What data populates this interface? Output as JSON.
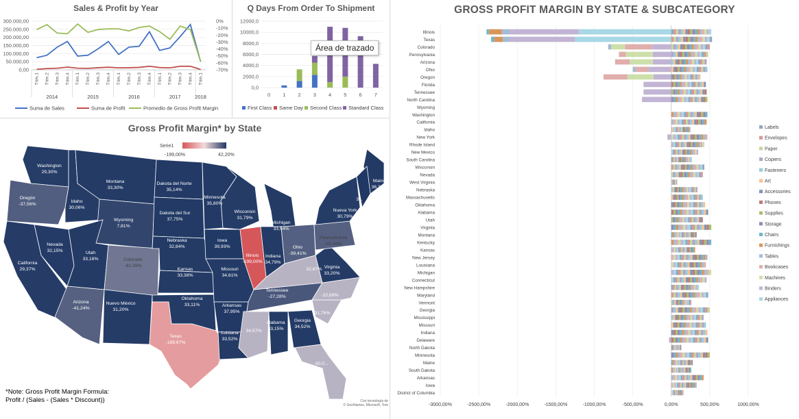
{
  "charts": {
    "sales_profit": {
      "title": "Sales & Profit by Year",
      "left_ticks": [
        "300.000,00",
        "250.000,00",
        "200.000,00",
        "150.000,00",
        "100.000,00",
        "50.000,00",
        "0,00"
      ],
      "right_ticks": [
        "0%",
        "-10%",
        "-20%",
        "-30%",
        "-40%",
        "-50%",
        "-60%",
        "-70%"
      ],
      "quarter_labels": [
        "Trim.1",
        "Trim.2",
        "Trim.3",
        "Trim.4",
        "Trim.1",
        "Trim.2",
        "Trim.3",
        "Trim.4",
        "Trim.1",
        "Trim.2",
        "Trim.3",
        "Trim.4",
        "Trim.1",
        "Trim.2",
        "Trim.3",
        "Trim.4",
        "Trim.1"
      ],
      "year_labels": [
        "2014",
        "2015",
        "2016",
        "2017",
        "2018"
      ],
      "legend": [
        "Suma de Sales",
        "Suma de Profit",
        "Promedio de Gross Profit Margin"
      ],
      "colors": [
        "#4472c4",
        "#c0504d",
        "#9bbb59"
      ]
    },
    "ship_days": {
      "title": "Q Days From Order To Shipment",
      "y_ticks": [
        "12000,0",
        "10000,0",
        "8000,0",
        "6000,0",
        "4000,0",
        "2000,0",
        "0,0"
      ],
      "x_ticks": [
        "0",
        "1",
        "2",
        "3",
        "4",
        "5",
        "6",
        "7"
      ],
      "legend": [
        "First Class",
        "Same Day",
        "Second Class",
        "Standard Class"
      ],
      "colors": [
        "#4472c4",
        "#c0504d",
        "#9bbb59",
        "#8064a2"
      ],
      "tooltip": "Área de trazado"
    },
    "state_map": {
      "title": "Gross Profit Margin* by State",
      "legend_title": "Serie1",
      "legend_min": "-199,00%",
      "legend_max": "42,20%",
      "labels": [
        {
          "name": "Washington",
          "value": "29,30%"
        },
        {
          "name": "Oregón",
          "value": "-37,56%"
        },
        {
          "name": "California",
          "value": "29,37%"
        },
        {
          "name": "Nevada",
          "value": "32,15%"
        },
        {
          "name": "Idaho",
          "value": "30,06%"
        },
        {
          "name": "Montana",
          "value": "33,30%"
        },
        {
          "name": "Wyoming",
          "value": "7,81%"
        },
        {
          "name": "Utah",
          "value": "33,16%"
        },
        {
          "name": "Colorado",
          "value": "-61,39%"
        },
        {
          "name": "Arizona",
          "value": "-41,24%"
        },
        {
          "name": "Nuevo México",
          "value": "31,20%"
        },
        {
          "name": "Dakota del Norte",
          "value": "35,14%"
        },
        {
          "name": "Dakota del Sur",
          "value": "37,75%"
        },
        {
          "name": "Nebraska",
          "value": "32,84%"
        },
        {
          "name": "Kansas",
          "value": "33,38%"
        },
        {
          "name": "Oklahoma",
          "value": "33,11%"
        },
        {
          "name": "Texas",
          "value": "-189,67%"
        },
        {
          "name": "Minnesota",
          "value": "35,80%"
        },
        {
          "name": "Iowa",
          "value": "39,93%"
        },
        {
          "name": "Missouri",
          "value": "34,61%"
        },
        {
          "name": "Arkansas",
          "value": "37,95%"
        },
        {
          "name": "Luisiana",
          "value": "33,52%"
        },
        {
          "name": "Wisconsin",
          "value": "31,79%"
        },
        {
          "name": "Illinois",
          "value": "-199,00%"
        },
        {
          "name": "Michigan",
          "value": "33,54%"
        },
        {
          "name": "Indiana",
          "value": "34,79%"
        },
        {
          "name": "Ohio",
          "value": "-39,41%"
        },
        {
          "name": "Tennessee",
          "value": "-27,28%"
        },
        {
          "name": "",
          "value": "34,57%"
        },
        {
          "name": "Alabama",
          "value": "33,15%"
        },
        {
          "name": "Georgia",
          "value": "34,52%"
        },
        {
          "name": "",
          "value": "31,76%"
        },
        {
          "name": "",
          "value": "-22,69%"
        },
        {
          "name": "",
          "value": "32,67%"
        },
        {
          "name": "Virginia",
          "value": "33,20%"
        },
        {
          "name": "Pennsylvania",
          "value": "-41,46%"
        },
        {
          "name": "Nueva York",
          "value": "30,79%"
        },
        {
          "name": "Maine",
          "value": "36,38%"
        },
        {
          "name": "3...",
          "value": ""
        },
        {
          "name": "",
          "value": "-30,0..."
        }
      ],
      "note_line1": "*Note: Gross Profit Margin Formula:",
      "note_line2": "Profit / (Sales - (Sales * Discount))",
      "credit_line1": "Con tecnología de",
      "credit_line2": "© GeoNames, Microsoft, Tom"
    },
    "subcategory": {
      "title": "GROSS PROFIT MARGIN BY STATE & SUBCATEGORY",
      "states": [
        "Illinois",
        "Texas",
        "Colorado",
        "Pennsylvania",
        "Arizona",
        "Ohio",
        "Oregon",
        "Florida",
        "Tennessee",
        "North Carolina",
        "Wyoming",
        "Washington",
        "California",
        "Idaho",
        "New York",
        "Rhode Island",
        "New Mexico",
        "South Carolina",
        "Wisconsin",
        "Nevada",
        "West Virginia",
        "Nebraska",
        "Massachusetts",
        "Oklahoma",
        "Alabama",
        "Utah",
        "Virginia",
        "Montana",
        "Kentucky",
        "Kansas",
        "New Jersey",
        "Louisiana",
        "Michigan",
        "Connecticut",
        "New Hampshire",
        "Maryland",
        "Vermont",
        "Georgia",
        "Mississippi",
        "Missouri",
        "Indiana",
        "Delaware",
        "North Dakota",
        "Minnesota",
        "Maine",
        "South Dakota",
        "Arkansas",
        "Iowa",
        "District of Columbia"
      ],
      "x_ticks": [
        "-3000,00%",
        "-2500,00%",
        "-2000,00%",
        "-1500,00%",
        "-1000,00%",
        "-500,00%",
        "0,00%",
        "500,00%",
        "1000,00%"
      ],
      "legend": [
        "Labels",
        "Envelopes",
        "Paper",
        "Copiers",
        "Fasteners",
        "Art",
        "Accessories",
        "Phones",
        "Supplies",
        "Storage",
        "Chairs",
        "Furnishings",
        "Tables",
        "Bookcases",
        "Machines",
        "Binders",
        "Appliances"
      ],
      "colors": [
        "#8ea9c1",
        "#d99694",
        "#c3d69b",
        "#b3a2c7",
        "#93cddd",
        "#fac090",
        "#7f96b5",
        "#b97c7a",
        "#a9bf72",
        "#9b86b5",
        "#6fb6c9",
        "#d9965b",
        "#a6bbd4",
        "#e0aeac",
        "#cddfaa",
        "#c2b4d4",
        "#a8d8e5"
      ],
      "negatives": [
        {
          "state": "Illinois",
          "segments": [
            {
              "c": 16,
              "v": -1200
            },
            {
              "c": 15,
              "v": -900
            },
            {
              "c": 12,
              "v": -100
            },
            {
              "c": 11,
              "v": -170
            },
            {
              "c": 10,
              "v": -30
            }
          ]
        },
        {
          "state": "Texas",
          "segments": [
            {
              "c": 16,
              "v": -1250
            },
            {
              "c": 15,
              "v": -850
            },
            {
              "c": 12,
              "v": -90
            },
            {
              "c": 11,
              "v": -110
            },
            {
              "c": 10,
              "v": -40
            }
          ]
        },
        {
          "state": "Colorado",
          "segments": [
            {
              "c": 15,
              "v": -250
            },
            {
              "c": 13,
              "v": -350
            },
            {
              "c": 14,
              "v": -180
            },
            {
              "c": 12,
              "v": -40
            }
          ]
        },
        {
          "state": "Pennsylvania",
          "segments": [
            {
              "c": 15,
              "v": -240
            },
            {
              "c": 14,
              "v": -350
            },
            {
              "c": 13,
              "v": -90
            }
          ]
        },
        {
          "state": "Arizona",
          "segments": [
            {
              "c": 15,
              "v": -240
            },
            {
              "c": 14,
              "v": -300
            },
            {
              "c": 13,
              "v": -190
            }
          ]
        },
        {
          "state": "Ohio",
          "segments": [
            {
              "c": 15,
              "v": -300
            },
            {
              "c": 13,
              "v": -160
            },
            {
              "c": 12,
              "v": -40
            }
          ]
        },
        {
          "state": "Oregon",
          "segments": [
            {
              "c": 15,
              "v": -230
            },
            {
              "c": 14,
              "v": -340
            },
            {
              "c": 13,
              "v": -310
            }
          ]
        },
        {
          "state": "Florida",
          "segments": [
            {
              "c": 15,
              "v": -360
            }
          ]
        },
        {
          "state": "Tennessee",
          "segments": [
            {
              "c": 15,
              "v": -360
            }
          ]
        },
        {
          "state": "North Carolina",
          "segments": [
            {
              "c": 15,
              "v": -380
            }
          ]
        },
        {
          "state": "New York",
          "segments": [
            {
              "c": 15,
              "v": -50
            }
          ]
        },
        {
          "state": "Delaware",
          "segments": [
            {
              "c": 15,
              "v": -30
            }
          ]
        }
      ],
      "positives": [
        {
          "state": "Illinois",
          "total": 520
        },
        {
          "state": "Texas",
          "total": 530
        },
        {
          "state": "Colorado",
          "total": 500
        },
        {
          "state": "Pennsylvania",
          "total": 480
        },
        {
          "state": "Arizona",
          "total": 460
        },
        {
          "state": "Ohio",
          "total": 470
        },
        {
          "state": "Oregon",
          "total": 380
        },
        {
          "state": "Florida",
          "total": 450
        },
        {
          "state": "Tennessee",
          "total": 460
        },
        {
          "state": "North Carolina",
          "total": 470
        },
        {
          "state": "Wyoming",
          "total": 0
        },
        {
          "state": "Washington",
          "total": 470
        },
        {
          "state": "California",
          "total": 460
        },
        {
          "state": "Idaho",
          "total": 250
        },
        {
          "state": "New York",
          "total": 470
        },
        {
          "state": "Rhode Island",
          "total": 430
        },
        {
          "state": "New Mexico",
          "total": 350
        },
        {
          "state": "South Carolina",
          "total": 270
        },
        {
          "state": "Wisconsin",
          "total": 430
        },
        {
          "state": "Nevada",
          "total": 410
        },
        {
          "state": "West Virginia",
          "total": 80
        },
        {
          "state": "Nebraska",
          "total": 340
        },
        {
          "state": "Massachusetts",
          "total": 410
        },
        {
          "state": "Oklahoma",
          "total": 440
        },
        {
          "state": "Alabama",
          "total": 480
        },
        {
          "state": "Utah",
          "total": 410
        },
        {
          "state": "Virginia",
          "total": 520
        },
        {
          "state": "Montana",
          "total": 330
        },
        {
          "state": "Kentucky",
          "total": 520
        },
        {
          "state": "Kansas",
          "total": 310
        },
        {
          "state": "New Jersey",
          "total": 470
        },
        {
          "state": "Louisiana",
          "total": 450
        },
        {
          "state": "Michigan",
          "total": 520
        },
        {
          "state": "Connecticut",
          "total": 460
        },
        {
          "state": "New Hampshire",
          "total": 360
        },
        {
          "state": "Maryland",
          "total": 480
        },
        {
          "state": "Vermont",
          "total": 260
        },
        {
          "state": "Georgia",
          "total": 500
        },
        {
          "state": "Mississippi",
          "total": 420
        },
        {
          "state": "Missouri",
          "total": 450
        },
        {
          "state": "Indiana",
          "total": 470
        },
        {
          "state": "Delaware",
          "total": 480
        },
        {
          "state": "North Dakota",
          "total": 130
        },
        {
          "state": "Minnesota",
          "total": 500
        },
        {
          "state": "Maine",
          "total": 280
        },
        {
          "state": "South Dakota",
          "total": 260
        },
        {
          "state": "Arkansas",
          "total": 420
        },
        {
          "state": "Iowa",
          "total": 330
        },
        {
          "state": "District of Columbia",
          "total": 160
        }
      ]
    }
  },
  "chart_data": [
    {
      "type": "line",
      "title": "Sales & Profit by Year",
      "categories": [
        "2014 Trim.1",
        "2014 Trim.2",
        "2014 Trim.3",
        "2014 Trim.4",
        "2015 Trim.1",
        "2015 Trim.2",
        "2015 Trim.3",
        "2015 Trim.4",
        "2016 Trim.1",
        "2016 Trim.2",
        "2016 Trim.3",
        "2016 Trim.4",
        "2017 Trim.1",
        "2017 Trim.2",
        "2017 Trim.3",
        "2017 Trim.4",
        "2018 Trim.1"
      ],
      "ylim": [
        0,
        300000
      ],
      "y2lim": [
        -70,
        0
      ],
      "series": [
        {
          "name": "Suma de Sales",
          "axis": "left",
          "values": [
            75000,
            90000,
            140000,
            175000,
            85000,
            90000,
            130000,
            175000,
            95000,
            140000,
            145000,
            235000,
            120000,
            135000,
            205000,
            280000,
            50000
          ]
        },
        {
          "name": "Suma de Profit",
          "axis": "left",
          "values": [
            3000,
            8000,
            10000,
            17000,
            10000,
            9000,
            13000,
            16000,
            12000,
            13000,
            15000,
            22000,
            14000,
            12000,
            22000,
            22000,
            2000
          ]
        },
        {
          "name": "Promedio de Gross Profit Margin",
          "axis": "right",
          "unit": "%",
          "values": [
            -12,
            -5,
            -17,
            -18,
            -4,
            -16,
            -12,
            -11,
            -11,
            -14,
            -9,
            -7,
            -15,
            -26,
            -7,
            -12,
            -58
          ]
        }
      ]
    },
    {
      "type": "bar",
      "stacked": true,
      "title": "Q Days From Order To Shipment",
      "categories": [
        "0",
        "1",
        "2",
        "3",
        "4",
        "5",
        "6",
        "7"
      ],
      "ylim": [
        0,
        12000
      ],
      "series": [
        {
          "name": "First Class",
          "values": [
            0,
            400,
            1200,
            2300,
            0,
            0,
            0,
            0
          ]
        },
        {
          "name": "Same Day",
          "values": [
            0,
            0,
            0,
            0,
            0,
            0,
            0,
            0
          ]
        },
        {
          "name": "Second Class",
          "values": [
            0,
            0,
            2100,
            2200,
            1000,
            2000,
            0,
            0
          ]
        },
        {
          "name": "Standard Class",
          "values": [
            0,
            0,
            0,
            1200,
            10000,
            8800,
            9300,
            4300
          ]
        }
      ]
    },
    {
      "type": "heatmap",
      "title": "Gross Profit Margin* by State",
      "legend": {
        "min": -199.0,
        "max": 42.2,
        "title": "Serie1"
      },
      "values": {
        "Washington": 29.3,
        "Oregón": -37.56,
        "California": 29.37,
        "Nevada": 32.15,
        "Idaho": 30.06,
        "Montana": 33.3,
        "Wyoming": 7.81,
        "Utah": 33.16,
        "Colorado": -61.39,
        "Arizona": -41.24,
        "Nuevo México": 31.2,
        "Dakota del Norte": 35.14,
        "Dakota del Sur": 37.75,
        "Nebraska": 32.84,
        "Kansas": 33.38,
        "Oklahoma": 33.11,
        "Texas": -189.67,
        "Minnesota": 35.8,
        "Iowa": 39.93,
        "Missouri": 34.61,
        "Arkansas": 37.95,
        "Luisiana": 33.52,
        "Wisconsin": 31.79,
        "Illinois": -199.0,
        "Michigan": 33.54,
        "Indiana": 34.79,
        "Ohio": -39.41,
        "Tennessee": -27.28,
        "Alabama": 33.15,
        "Georgia": 34.52,
        "Virginia": 33.2,
        "Pennsylvania": -41.46,
        "Nueva York": 30.79,
        "Maine": 36.38
      }
    },
    {
      "type": "bar",
      "orientation": "horizontal",
      "stacked": true,
      "title": "GROSS PROFIT MARGIN BY STATE & SUBCATEGORY",
      "xlim": [
        -3000,
        1000
      ],
      "unit": "%"
    }
  ]
}
